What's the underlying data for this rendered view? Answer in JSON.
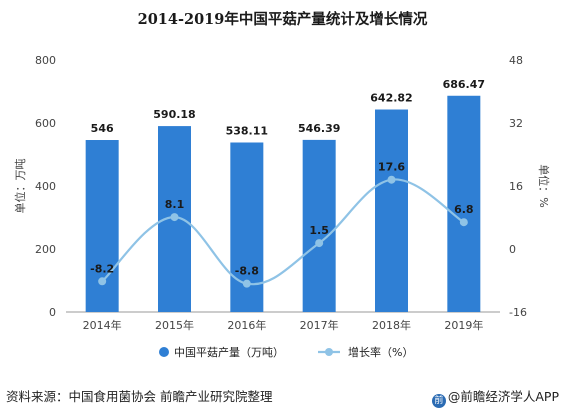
{
  "title": "2014-2019年中国平菇产量统计及增长情况",
  "source": "资料来源：中国食用菌协会 前瞻产业研究院整理",
  "brand": "@前瞻经济学人APP",
  "chart_data": {
    "type": "bar",
    "categories": [
      "2014年",
      "2015年",
      "2016年",
      "2017年",
      "2018年",
      "2019年"
    ],
    "series": [
      {
        "name": "中国平菇产量（万吨）",
        "type": "bar",
        "axis": "left",
        "color": "#2f7fd4",
        "values": [
          546,
          590.18,
          538.11,
          546.39,
          642.82,
          686.47
        ],
        "labels": [
          "546",
          "590.18",
          "538.11",
          "546.39",
          "642.82",
          "686.47"
        ]
      },
      {
        "name": "增长率（%）",
        "type": "line",
        "axis": "right",
        "color": "#8fc3e6",
        "values": [
          -8.2,
          8.1,
          -8.8,
          1.5,
          17.6,
          6.8
        ],
        "labels": [
          "-8.2",
          "8.1",
          "-8.8",
          "1.5",
          "17.6",
          "6.8"
        ]
      }
    ],
    "y_left": {
      "label": "单位：万吨",
      "min": 0,
      "max": 800,
      "ticks": [
        0,
        200,
        400,
        600,
        800
      ],
      "tick_labels": [
        "0",
        "200",
        "400",
        "600",
        "800"
      ]
    },
    "y_right": {
      "label": "单位：%",
      "min": -16,
      "max": 48,
      "ticks": [
        -16,
        0,
        16,
        32,
        48
      ],
      "tick_labels": [
        "-16",
        "0",
        "16",
        "32",
        "48"
      ]
    },
    "grid": false,
    "legend": "bottom-center"
  }
}
